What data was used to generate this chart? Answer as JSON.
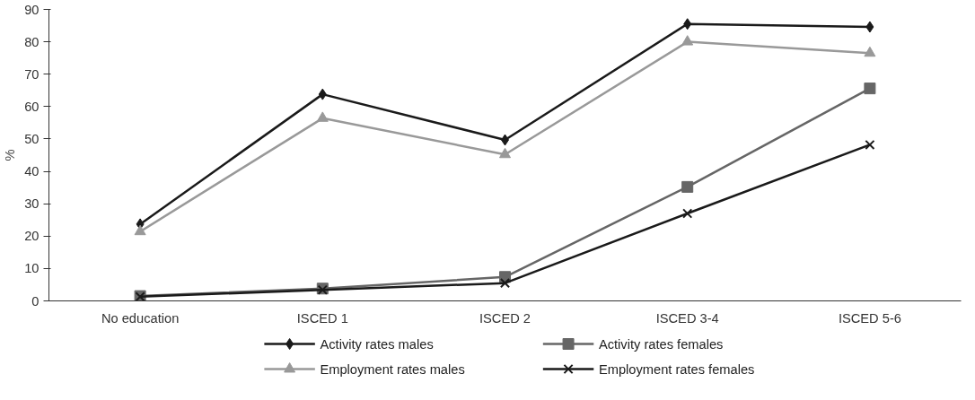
{
  "chart_data": {
    "type": "line",
    "ylabel": "%",
    "categories": [
      "No education",
      "ISCED 1",
      "ISCED 2",
      "ISCED 3-4",
      "ISCED 5-6"
    ],
    "ylim": [
      0,
      90
    ],
    "yticks": [
      0,
      10,
      20,
      30,
      40,
      50,
      60,
      70,
      80,
      90
    ],
    "grid": false,
    "legend": "bottom",
    "series": [
      {
        "name": "Activity rates males",
        "color": "#1a1a1a",
        "marker": "diamond",
        "values": [
          23.7,
          63.8,
          49.7,
          85.5,
          84.6
        ]
      },
      {
        "name": "Activity rates females",
        "color": "#666666",
        "marker": "square",
        "values": [
          1.5,
          3.8,
          7.4,
          35.2,
          65.6
        ]
      },
      {
        "name": "Employment rates males",
        "color": "#999999",
        "marker": "triangle",
        "values": [
          21.4,
          56.4,
          45.2,
          80.0,
          76.5
        ]
      },
      {
        "name": "Employment rates females",
        "color": "#1a1a1a",
        "marker": "cross",
        "values": [
          1.3,
          3.4,
          5.5,
          27.0,
          48.2
        ]
      }
    ]
  }
}
